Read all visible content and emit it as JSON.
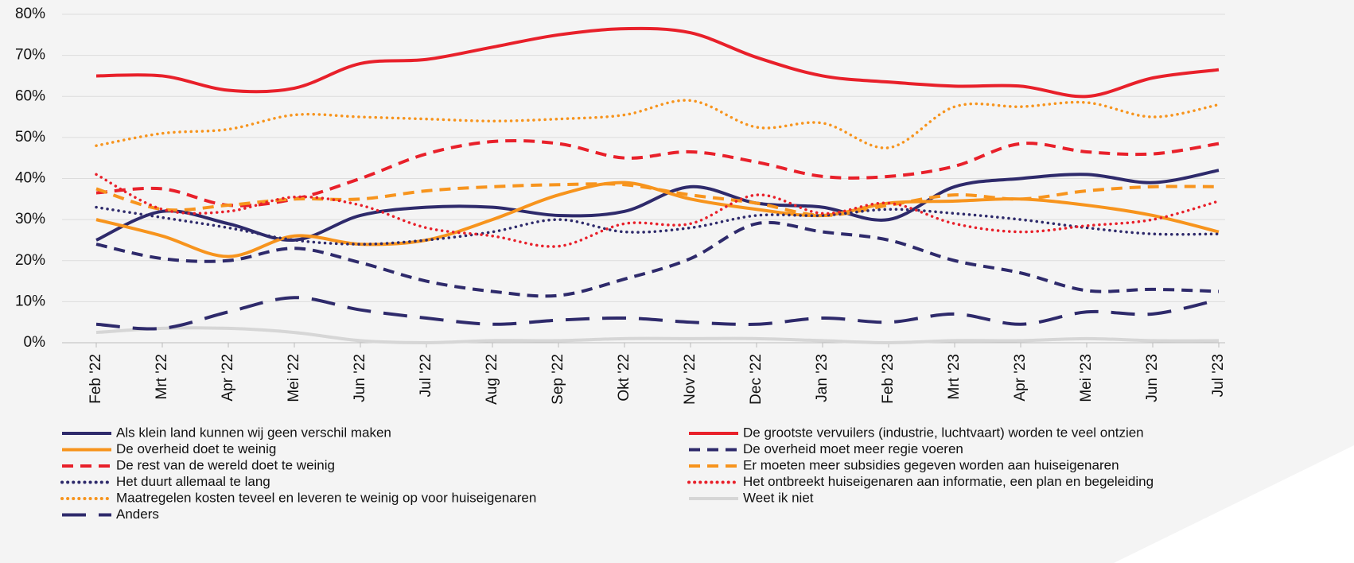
{
  "chart_data": {
    "type": "line",
    "categories": [
      "Feb '22",
      "Mrt '22",
      "Apr '22",
      "Mei '22",
      "Jun '22",
      "Jul '22",
      "Aug '22",
      "Sep '22",
      "Okt '22",
      "Nov '22",
      "Dec '22",
      "Jan '23",
      "Feb '23",
      "Mrt '23",
      "Apr '23",
      "Mei '23",
      "Jun '23",
      "Jul '23"
    ],
    "ylim": [
      0,
      80
    ],
    "yticks": [
      {
        "value": 0,
        "label": "0%"
      },
      {
        "value": 10,
        "label": "10%"
      },
      {
        "value": 20,
        "label": "20%"
      },
      {
        "value": 30,
        "label": "30%"
      },
      {
        "value": 40,
        "label": "40%"
      },
      {
        "value": 50,
        "label": "50%"
      },
      {
        "value": 60,
        "label": "60%"
      },
      {
        "value": 70,
        "label": "70%"
      },
      {
        "value": 80,
        "label": "80%"
      }
    ],
    "grid": true,
    "series": [
      {
        "name": "Als klein land kunnen wij geen verschil maken",
        "color": "#2e2a6b",
        "dash": "solid",
        "values": [
          25,
          32,
          29,
          25,
          31,
          33,
          33,
          31,
          32,
          38,
          34,
          33,
          30,
          38,
          40,
          41,
          39,
          42
        ]
      },
      {
        "name": "De grootste vervuilers (industrie, luchtvaart) worden te veel ontzien",
        "color": "#e8202a",
        "dash": "solid",
        "values": [
          65,
          65,
          61.5,
          62,
          68,
          69,
          72,
          75,
          76.5,
          75.5,
          69.5,
          65,
          63.5,
          62.5,
          62.5,
          60,
          64.5,
          66.5
        ]
      },
      {
        "name": "De overheid doet te weinig",
        "color": "#f7941d",
        "dash": "solid",
        "values": [
          30,
          26,
          21,
          26,
          24,
          25,
          30,
          36,
          39,
          35,
          32.5,
          31,
          34,
          34.5,
          35,
          33.5,
          31,
          27
        ]
      },
      {
        "name": "De overheid moet meer regie voeren",
        "color": "#2e2a6b",
        "dash": "dashed",
        "values": [
          24,
          20.5,
          20,
          23,
          19.5,
          15,
          12.5,
          11.5,
          15.5,
          20.5,
          29,
          27,
          25,
          20,
          17,
          12.7,
          13,
          12.5
        ]
      },
      {
        "name": "De rest van de wereld doet te weinig",
        "color": "#e8202a",
        "dash": "dashed",
        "values": [
          36.5,
          37.5,
          33.5,
          35,
          40,
          46,
          49,
          48.5,
          45,
          46.5,
          44,
          40.5,
          40.5,
          43,
          48.5,
          46.5,
          46,
          48.5
        ]
      },
      {
        "name": "Er moeten meer subsidies gegeven worden aan huiseigenaren",
        "color": "#f7941d",
        "dash": "dashed",
        "values": [
          37.5,
          32.5,
          33.5,
          35,
          35,
          37,
          38,
          38.5,
          38.5,
          36,
          34,
          31,
          33.5,
          36,
          35,
          37,
          38,
          38
        ]
      },
      {
        "name": "Het duurt allemaal te lang",
        "color": "#2e2a6b",
        "dash": "dotted",
        "values": [
          33,
          30.5,
          28,
          25,
          24,
          25,
          27,
          30,
          27,
          28,
          31,
          31,
          32.5,
          31.5,
          30,
          28,
          26.5,
          26.5
        ]
      },
      {
        "name": "Het ontbreekt huiseigenaren aan informatie, een plan en begeleiding",
        "color": "#e8202a",
        "dash": "dotted",
        "values": [
          41,
          32.5,
          32,
          35.5,
          33.5,
          28,
          26,
          23.5,
          29,
          29,
          36,
          31.5,
          34,
          29,
          27,
          28.5,
          30,
          34.5
        ]
      },
      {
        "name": "Maatregelen kosten teveel en leveren te weinig op voor huiseigenaren",
        "color": "#f7941d",
        "dash": "dotted",
        "values": [
          48,
          51,
          52,
          55.5,
          55,
          54.5,
          54,
          54.5,
          55.5,
          59,
          52.5,
          53.5,
          47.5,
          57.5,
          57.5,
          58.5,
          55,
          58
        ]
      },
      {
        "name": "Weet ik niet",
        "color": "#d6d6d6",
        "dash": "solid",
        "values": [
          2.5,
          3.5,
          3.5,
          2.5,
          0.5,
          0,
          0.5,
          0.5,
          1,
          1,
          1,
          0.5,
          0,
          0.5,
          0.5,
          1,
          0.5,
          0.5
        ]
      },
      {
        "name": "Anders",
        "color": "#2e2a6b",
        "dash": "longdash",
        "values": [
          4.5,
          3.5,
          7.5,
          11,
          8,
          6,
          4.5,
          5.5,
          6,
          5,
          4.5,
          6,
          5,
          7,
          4.5,
          7.5,
          7,
          10.5
        ]
      }
    ]
  }
}
